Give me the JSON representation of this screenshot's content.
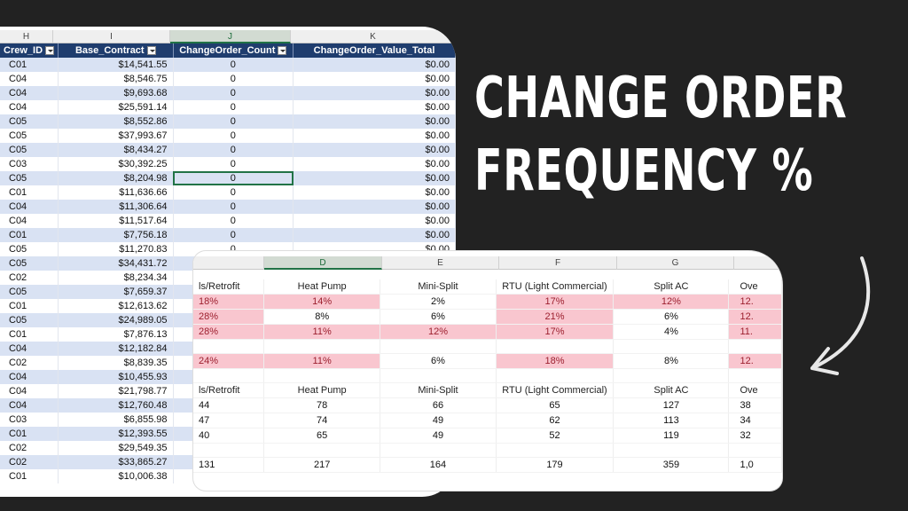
{
  "sheet1": {
    "column_letters": [
      "H",
      "I",
      "J",
      "K"
    ],
    "headers": [
      "Crew_ID",
      "Base_Contract",
      "ChangeOrder_Count",
      "ChangeOrder_Value_Total"
    ],
    "rows": [
      {
        "crew": "C01",
        "base": "$14,541.55",
        "count": "0",
        "value": "$0.00"
      },
      {
        "crew": "C04",
        "base": "$8,546.75",
        "count": "0",
        "value": "$0.00"
      },
      {
        "crew": "C04",
        "base": "$9,693.68",
        "count": "0",
        "value": "$0.00"
      },
      {
        "crew": "C04",
        "base": "$25,591.14",
        "count": "0",
        "value": "$0.00"
      },
      {
        "crew": "C05",
        "base": "$8,552.86",
        "count": "0",
        "value": "$0.00"
      },
      {
        "crew": "C05",
        "base": "$37,993.67",
        "count": "0",
        "value": "$0.00"
      },
      {
        "crew": "C05",
        "base": "$8,434.27",
        "count": "0",
        "value": "$0.00"
      },
      {
        "crew": "C03",
        "base": "$30,392.25",
        "count": "0",
        "value": "$0.00"
      },
      {
        "crew": "C05",
        "base": "$8,204.98",
        "count": "0",
        "value": "$0.00"
      },
      {
        "crew": "C01",
        "base": "$11,636.66",
        "count": "0",
        "value": "$0.00"
      },
      {
        "crew": "C04",
        "base": "$11,306.64",
        "count": "0",
        "value": "$0.00"
      },
      {
        "crew": "C04",
        "base": "$11,517.64",
        "count": "0",
        "value": "$0.00"
      },
      {
        "crew": "C01",
        "base": "$7,756.18",
        "count": "0",
        "value": "$0.00"
      },
      {
        "crew": "C05",
        "base": "$11,270.83",
        "count": "0",
        "value": "$0.00"
      },
      {
        "crew": "C05",
        "base": "$34,431.72",
        "count": "",
        "value": ""
      },
      {
        "crew": "C02",
        "base": "$8,234.34",
        "count": "",
        "value": ""
      },
      {
        "crew": "C05",
        "base": "$7,659.37",
        "count": "",
        "value": ""
      },
      {
        "crew": "C01",
        "base": "$12,613.62",
        "count": "",
        "value": ""
      },
      {
        "crew": "C05",
        "base": "$24,989.05",
        "count": "",
        "value": ""
      },
      {
        "crew": "C01",
        "base": "$7,876.13",
        "count": "",
        "value": ""
      },
      {
        "crew": "C04",
        "base": "$12,182.84",
        "count": "",
        "value": ""
      },
      {
        "crew": "C02",
        "base": "$8,839.35",
        "count": "",
        "value": ""
      },
      {
        "crew": "C04",
        "base": "$10,455.93",
        "count": "",
        "value": ""
      },
      {
        "crew": "C04",
        "base": "$21,798.77",
        "count": "",
        "value": ""
      },
      {
        "crew": "C04",
        "base": "$12,760.48",
        "count": "",
        "value": ""
      },
      {
        "crew": "C03",
        "base": "$6,855.98",
        "count": "",
        "value": ""
      },
      {
        "crew": "C01",
        "base": "$12,393.55",
        "count": "",
        "value": ""
      },
      {
        "crew": "C02",
        "base": "$29,549.35",
        "count": "",
        "value": ""
      },
      {
        "crew": "C02",
        "base": "$33,865.27",
        "count": "",
        "value": ""
      },
      {
        "crew": "C01",
        "base": "$10,006.38",
        "count": "",
        "value": ""
      }
    ],
    "active_row": 8
  },
  "headline": {
    "line1": "CHANGE ORDER",
    "line2": "FREQUENCY %"
  },
  "sheet2": {
    "column_letters": [
      "",
      "D",
      "E",
      "F",
      "G",
      ""
    ],
    "selected_column": "D",
    "pct_headers": [
      "ls/Retrofit",
      "Heat Pump",
      "Mini-Split",
      "RTU (Light Commercial)",
      "Split AC",
      "Ove"
    ],
    "pct_rows": [
      {
        "cells": [
          "18%",
          "14%",
          "2%",
          "17%",
          "12%",
          "12."
        ],
        "pink": [
          true,
          true,
          false,
          true,
          true,
          true
        ]
      },
      {
        "cells": [
          "28%",
          "8%",
          "6%",
          "21%",
          "6%",
          "12."
        ],
        "pink": [
          true,
          false,
          false,
          true,
          false,
          true
        ]
      },
      {
        "cells": [
          "28%",
          "11%",
          "12%",
          "17%",
          "4%",
          "11."
        ],
        "pink": [
          true,
          true,
          true,
          true,
          false,
          true
        ]
      },
      {
        "cells": [
          "",
          "",
          "",
          "",
          "",
          ""
        ],
        "pink": [
          false,
          false,
          false,
          false,
          false,
          false
        ]
      },
      {
        "cells": [
          "24%",
          "11%",
          "6%",
          "18%",
          "8%",
          "12."
        ],
        "pink": [
          true,
          true,
          false,
          true,
          false,
          true
        ]
      }
    ],
    "count_headers": [
      "ls/Retrofit",
      "Heat Pump",
      "Mini-Split",
      "RTU (Light Commercial)",
      "Split AC",
      "Ove"
    ],
    "count_rows": [
      {
        "cells": [
          "44",
          "78",
          "66",
          "65",
          "127",
          "38"
        ]
      },
      {
        "cells": [
          "47",
          "74",
          "49",
          "62",
          "113",
          "34"
        ]
      },
      {
        "cells": [
          "40",
          "65",
          "49",
          "52",
          "119",
          "32"
        ]
      },
      {
        "cells": [
          "",
          "",
          "",
          "",
          "",
          ""
        ]
      },
      {
        "cells": [
          "131",
          "217",
          "164",
          "179",
          "359",
          "1,0"
        ]
      }
    ]
  }
}
